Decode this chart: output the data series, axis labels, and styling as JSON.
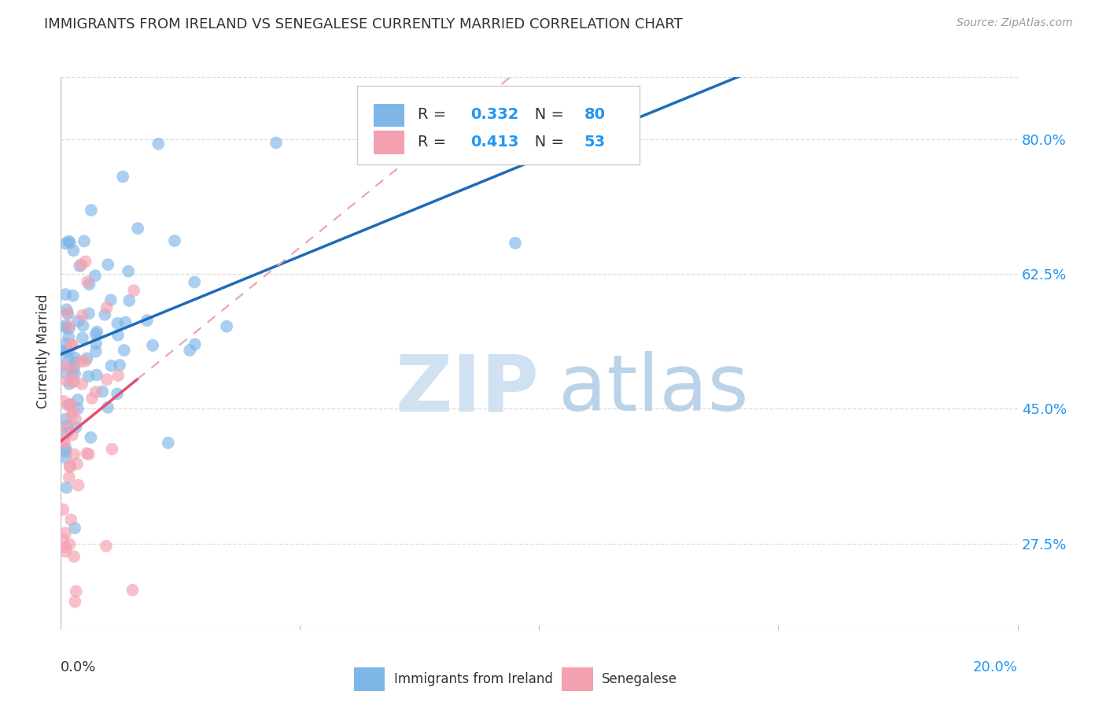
{
  "title": "IMMIGRANTS FROM IRELAND VS SENEGALESE CURRENTLY MARRIED CORRELATION CHART",
  "source": "Source: ZipAtlas.com",
  "ylabel": "Currently Married",
  "yticks": [
    "80.0%",
    "62.5%",
    "45.0%",
    "27.5%"
  ],
  "ytick_vals": [
    0.8,
    0.625,
    0.45,
    0.275
  ],
  "xlim": [
    0.0,
    0.2
  ],
  "ylim": [
    0.17,
    0.88
  ],
  "ireland_R": 0.332,
  "ireland_N": 80,
  "senegal_R": 0.413,
  "senegal_N": 53,
  "ireland_color": "#7EB6E8",
  "senegal_color": "#F4A0B0",
  "ireland_line_color": "#1E6BB8",
  "senegal_line_color": "#E05070",
  "senegal_dash_color": "#E8A0B0",
  "background_color": "#FFFFFF",
  "grid_color": "#DDDDDD",
  "blue_text_color": "#2196F3",
  "title_color": "#333333",
  "source_color": "#999999"
}
